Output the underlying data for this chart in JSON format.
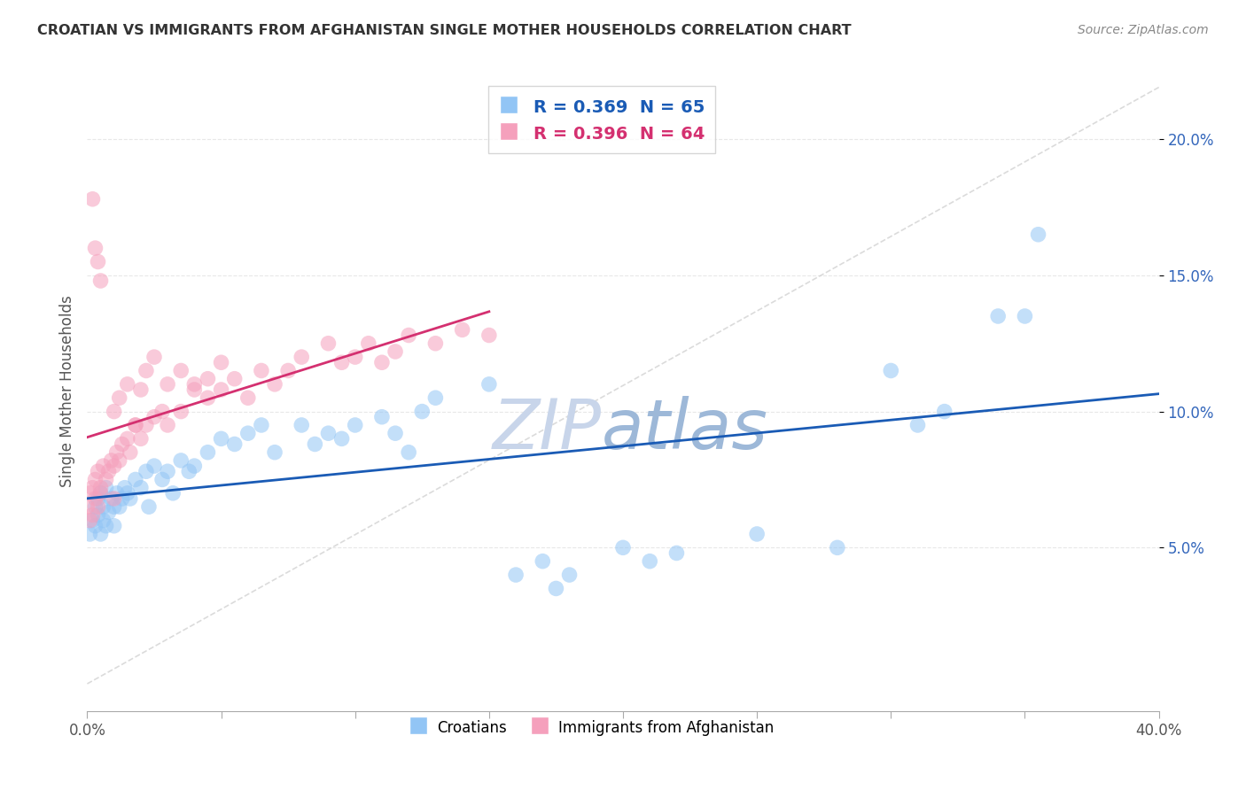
{
  "title": "CROATIAN VS IMMIGRANTS FROM AFGHANISTAN SINGLE MOTHER HOUSEHOLDS CORRELATION CHART",
  "source": "Source: ZipAtlas.com",
  "ylabel": "Single Mother Households",
  "xlim": [
    0.0,
    0.4
  ],
  "ylim": [
    -0.01,
    0.225
  ],
  "xticks": [
    0.0,
    0.1,
    0.2,
    0.3,
    0.4
  ],
  "xtick_labels": [
    "0.0%",
    "",
    "",
    "",
    "40.0%"
  ],
  "yticks": [
    0.05,
    0.1,
    0.15,
    0.2
  ],
  "ytick_labels": [
    "5.0%",
    "10.0%",
    "15.0%",
    "20.0%"
  ],
  "croatian_color": "#92c5f5",
  "afghan_color": "#f5a0bc",
  "croatian_trend_color": "#1a5bb5",
  "afghan_trend_color": "#d43070",
  "ref_line_color": "#cccccc",
  "R_croatian": 0.369,
  "N_croatian": 65,
  "R_afghan": 0.396,
  "N_afghan": 64,
  "watermark": "ZIPatlas",
  "watermark_color": "#c5d8f0",
  "legend_label_croatian": "Croatians",
  "legend_label_afghan": "Immigrants from Afghanistan",
  "background_color": "#ffffff",
  "grid_color": "#e8e8e8",
  "cr_x": [
    0.001,
    0.002,
    0.003,
    0.003,
    0.004,
    0.004,
    0.005,
    0.005,
    0.006,
    0.006,
    0.007,
    0.007,
    0.008,
    0.009,
    0.01,
    0.01,
    0.011,
    0.012,
    0.013,
    0.014,
    0.015,
    0.016,
    0.018,
    0.02,
    0.022,
    0.023,
    0.025,
    0.028,
    0.03,
    0.032,
    0.035,
    0.038,
    0.04,
    0.045,
    0.05,
    0.055,
    0.06,
    0.065,
    0.07,
    0.08,
    0.085,
    0.09,
    0.095,
    0.1,
    0.11,
    0.115,
    0.12,
    0.125,
    0.13,
    0.15,
    0.16,
    0.17,
    0.175,
    0.18,
    0.2,
    0.21,
    0.22,
    0.25,
    0.28,
    0.3,
    0.31,
    0.32,
    0.34,
    0.35,
    0.355
  ],
  "cr_y": [
    0.055,
    0.06,
    0.065,
    0.058,
    0.062,
    0.068,
    0.055,
    0.07,
    0.06,
    0.065,
    0.058,
    0.072,
    0.063,
    0.068,
    0.065,
    0.058,
    0.07,
    0.065,
    0.068,
    0.072,
    0.07,
    0.068,
    0.075,
    0.072,
    0.078,
    0.065,
    0.08,
    0.075,
    0.078,
    0.07,
    0.082,
    0.078,
    0.08,
    0.085,
    0.09,
    0.088,
    0.092,
    0.095,
    0.085,
    0.095,
    0.088,
    0.092,
    0.09,
    0.095,
    0.098,
    0.092,
    0.085,
    0.1,
    0.105,
    0.11,
    0.04,
    0.045,
    0.035,
    0.04,
    0.05,
    0.045,
    0.048,
    0.055,
    0.05,
    0.115,
    0.095,
    0.1,
    0.135,
    0.135,
    0.165
  ],
  "af_x": [
    0.0,
    0.001,
    0.001,
    0.002,
    0.002,
    0.003,
    0.003,
    0.004,
    0.004,
    0.005,
    0.005,
    0.006,
    0.007,
    0.008,
    0.009,
    0.01,
    0.01,
    0.011,
    0.012,
    0.013,
    0.015,
    0.016,
    0.018,
    0.02,
    0.022,
    0.025,
    0.028,
    0.03,
    0.035,
    0.04,
    0.045,
    0.05,
    0.055,
    0.06,
    0.065,
    0.07,
    0.075,
    0.08,
    0.09,
    0.095,
    0.1,
    0.105,
    0.11,
    0.115,
    0.12,
    0.13,
    0.14,
    0.15,
    0.01,
    0.012,
    0.015,
    0.018,
    0.02,
    0.022,
    0.025,
    0.03,
    0.035,
    0.04,
    0.045,
    0.05,
    0.002,
    0.003,
    0.004,
    0.005
  ],
  "af_y": [
    0.065,
    0.06,
    0.07,
    0.062,
    0.072,
    0.068,
    0.075,
    0.065,
    0.078,
    0.07,
    0.072,
    0.08,
    0.075,
    0.078,
    0.082,
    0.08,
    0.068,
    0.085,
    0.082,
    0.088,
    0.09,
    0.085,
    0.095,
    0.09,
    0.095,
    0.098,
    0.1,
    0.095,
    0.1,
    0.11,
    0.105,
    0.108,
    0.112,
    0.105,
    0.115,
    0.11,
    0.115,
    0.12,
    0.125,
    0.118,
    0.12,
    0.125,
    0.118,
    0.122,
    0.128,
    0.125,
    0.13,
    0.128,
    0.1,
    0.105,
    0.11,
    0.095,
    0.108,
    0.115,
    0.12,
    0.11,
    0.115,
    0.108,
    0.112,
    0.118,
    0.178,
    0.16,
    0.155,
    0.148
  ]
}
